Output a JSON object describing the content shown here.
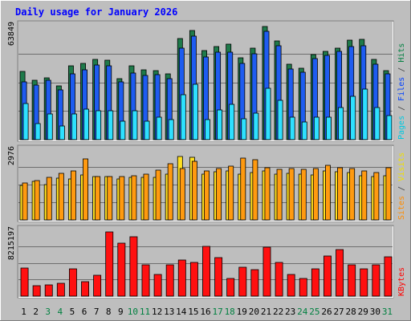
{
  "chart_data": {
    "type": "bar",
    "title": "Daily usage for January 2026",
    "categories": [
      "1",
      "2",
      "3",
      "4",
      "5",
      "6",
      "7",
      "8",
      "9",
      "10",
      "11",
      "12",
      "13",
      "14",
      "15",
      "16",
      "17",
      "18",
      "19",
      "20",
      "21",
      "22",
      "23",
      "24",
      "25",
      "26",
      "27",
      "28",
      "29",
      "30",
      "31"
    ],
    "weekend_days": [
      "3",
      "4",
      "10",
      "11",
      "17",
      "18",
      "24",
      "25",
      "31"
    ],
    "panels": [
      {
        "id": "top",
        "max_label": "63849",
        "ylim": [
          0,
          63849
        ],
        "right_label": [
          {
            "text": "Pages",
            "color": "#00c8e0"
          },
          {
            "text": " / ",
            "color": "#404040"
          },
          {
            "text": "Files",
            "color": "#0040ff"
          },
          {
            "text": " / ",
            "color": "#404040"
          },
          {
            "text": "Hits",
            "color": "#008040"
          }
        ],
        "series": [
          {
            "name": "Hits",
            "color": "#1e7a4a",
            "values": [
              37900,
              33200,
              34500,
              29800,
              41300,
              42400,
              44600,
              44300,
              34000,
              41300,
              38700,
              38300,
              36600,
              56100,
              60900,
              49500,
              51600,
              53200,
              45400,
              50800,
              62900,
              55000,
              42100,
              39900,
              47400,
              49100,
              51000,
              55400,
              55900,
              44700,
              38200
            ]
          },
          {
            "name": "Files",
            "color": "#1e5cf0",
            "values": [
              32200,
              30400,
              32900,
              27800,
              36600,
              38800,
              41600,
              41300,
              32300,
              37000,
              35900,
              36000,
              34000,
              50800,
              57800,
              45800,
              48800,
              48700,
              42500,
              47900,
              60100,
              52400,
              39500,
              37500,
              45000,
              47100,
              49000,
              51700,
              52300,
              41800,
              36400
            ]
          },
          {
            "name": "Pages",
            "color": "#2ee0ff",
            "values": [
              20300,
              9000,
              14300,
              7500,
              14100,
              17000,
              16100,
              16000,
              10100,
              16200,
              10400,
              12300,
              11000,
              24900,
              30900,
              11200,
              16400,
              19500,
              11700,
              14800,
              28600,
              21900,
              12300,
              9600,
              12600,
              12500,
              17800,
              24300,
              28100,
              18000,
              13400
            ]
          }
        ]
      },
      {
        "id": "middle",
        "max_label": "2976",
        "ylim": [
          0,
          2976
        ],
        "right_label": [
          {
            "text": "Sites",
            "color": "#ff8c00"
          },
          {
            "text": " / ",
            "color": "#404040"
          },
          {
            "text": "Visits",
            "color": "#f0e000"
          }
        ],
        "series": [
          {
            "name": "Visits",
            "color": "#ffe020",
            "values": [
              1450,
              1620,
              1500,
              1760,
              1740,
              1900,
              1840,
              1840,
              1740,
              1790,
              1800,
              1800,
              1920,
              2670,
              2630,
              1940,
              2020,
              2060,
              1920,
              2010,
              2050,
              1920,
              1950,
              1920,
              1900,
              2060,
              2030,
              1980,
              1860,
              1820,
              1870
            ]
          },
          {
            "name": "Sites",
            "color": "#ff9a10",
            "values": [
              1560,
              1660,
              1790,
              1960,
              2050,
              2580,
              1830,
              1840,
              1840,
              1850,
              1920,
              2100,
              2370,
              2150,
              2470,
              2050,
              2170,
              2250,
              2610,
              2530,
              2190,
              2120,
              2170,
              2140,
              2170,
              2300,
              2210,
              2180,
              2070,
              1980,
              2200
            ]
          }
        ]
      },
      {
        "id": "bottom",
        "max_label": "8215197",
        "ylim": [
          0,
          8215197
        ],
        "right_label": [
          {
            "text": "KBytes",
            "color": "#ff0000"
          }
        ],
        "series": [
          {
            "name": "KBytes",
            "color": "#ff1010",
            "values": [
              3450000,
              1280000,
              1360000,
              1580000,
              3350000,
              1820000,
              2580000,
              7940000,
              6540000,
              7370000,
              3840000,
              2660000,
              3900000,
              4410000,
              4120000,
              6110000,
              4720000,
              2160000,
              3550000,
              3260000,
              6000000,
              4110000,
              2660000,
              2130000,
              3370000,
              4930000,
              5710000,
              3840000,
              3330000,
              3830000,
              4890000
            ]
          }
        ]
      }
    ]
  },
  "colors": {
    "background": "#bebebe",
    "frame_light": "#ffffff",
    "frame_dark": "#808080",
    "title": "#0000ff",
    "weekday_label": "#000000",
    "weekend_label": "#008040"
  }
}
